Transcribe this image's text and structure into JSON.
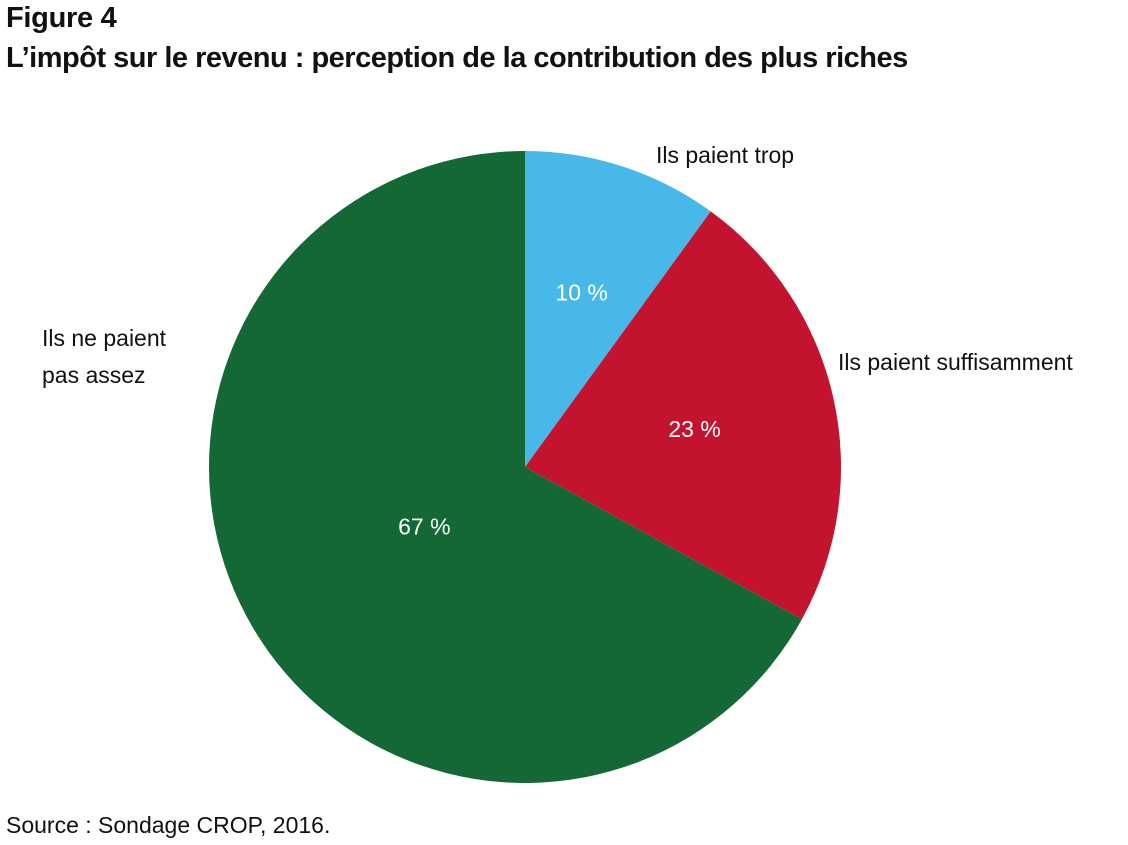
{
  "figure_label": "Figure 4",
  "title": "L’impôt sur le revenu : perception de la contribution des plus riches",
  "source": "Source : Sondage CROP, 2016.",
  "chart_data": {
    "type": "pie",
    "title": "L’impôt sur le revenu : perception de la contribution des plus riches",
    "unit": "%",
    "start_angle_deg": 0,
    "direction": "clockwise",
    "slices": [
      {
        "label": "Ils paient trop",
        "value": 10,
        "value_label": "10 %",
        "color": "#48b8e8"
      },
      {
        "label": "Ils paient suffisamment",
        "value": 23,
        "value_label": "23 %",
        "color": "#c4132f"
      },
      {
        "label": "Ils ne paient pas assez",
        "value": 67,
        "value_label": "67 %",
        "color": "#136836"
      }
    ],
    "legend": "none (labels beside slices)"
  }
}
